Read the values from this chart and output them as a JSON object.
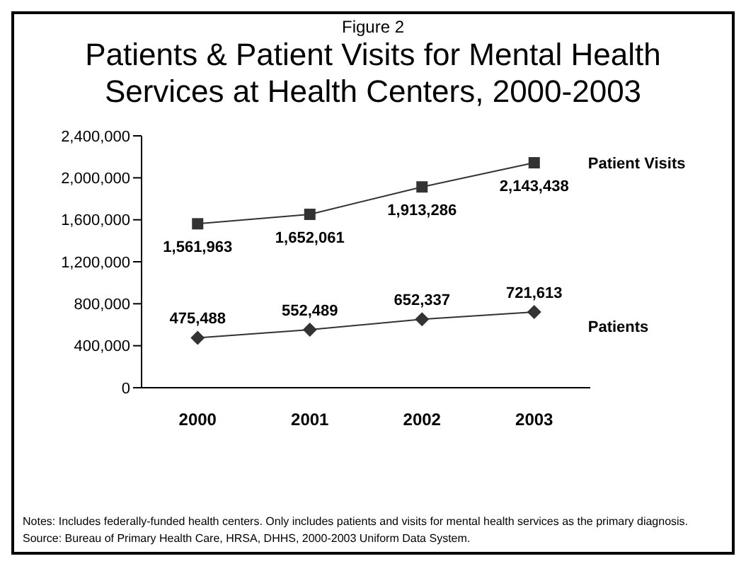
{
  "chart_data": {
    "type": "line",
    "title": "Patients & Patient Visits for Mental Health Services at Health Centers, 2000-2003",
    "subtitle": "Figure 2",
    "categories": [
      "2000",
      "2001",
      "2002",
      "2003"
    ],
    "series": [
      {
        "name": "Patient Visits",
        "color": "#333333",
        "marker": "square",
        "values": [
          1561963,
          1652061,
          1913286,
          2143438
        ],
        "value_labels": [
          "1,561,963",
          "1,652,061",
          "1,913,286",
          "2,143,438"
        ]
      },
      {
        "name": "Patients",
        "color": "#333333",
        "marker": "diamond",
        "values": [
          475488,
          552489,
          652337,
          721613
        ],
        "value_labels": [
          "475,488",
          "552,489",
          "652,337",
          "721,613"
        ]
      }
    ],
    "ylim": [
      0,
      2400000
    ],
    "yticks": [
      0,
      {
        "value": 400000,
        "label": "400,000"
      },
      {
        "value": 800000,
        "label": "800,000"
      },
      {
        "value": 1200000,
        "label": "1,200,000"
      },
      {
        "value": 1600000,
        "label": "1,600,000"
      },
      {
        "value": 2000000,
        "label": "2,000,000"
      },
      {
        "value": 2400000,
        "label": "2,400,000"
      }
    ],
    "grid": false,
    "legend": false,
    "annotations": [
      "Notes:  Includes federally-funded health centers. Only includes patients and visits for mental health services as the primary diagnosis.",
      "Source:  Bureau of Primary Health Care, HRSA, DHHS, 2000-2003 Uniform Data System."
    ]
  }
}
